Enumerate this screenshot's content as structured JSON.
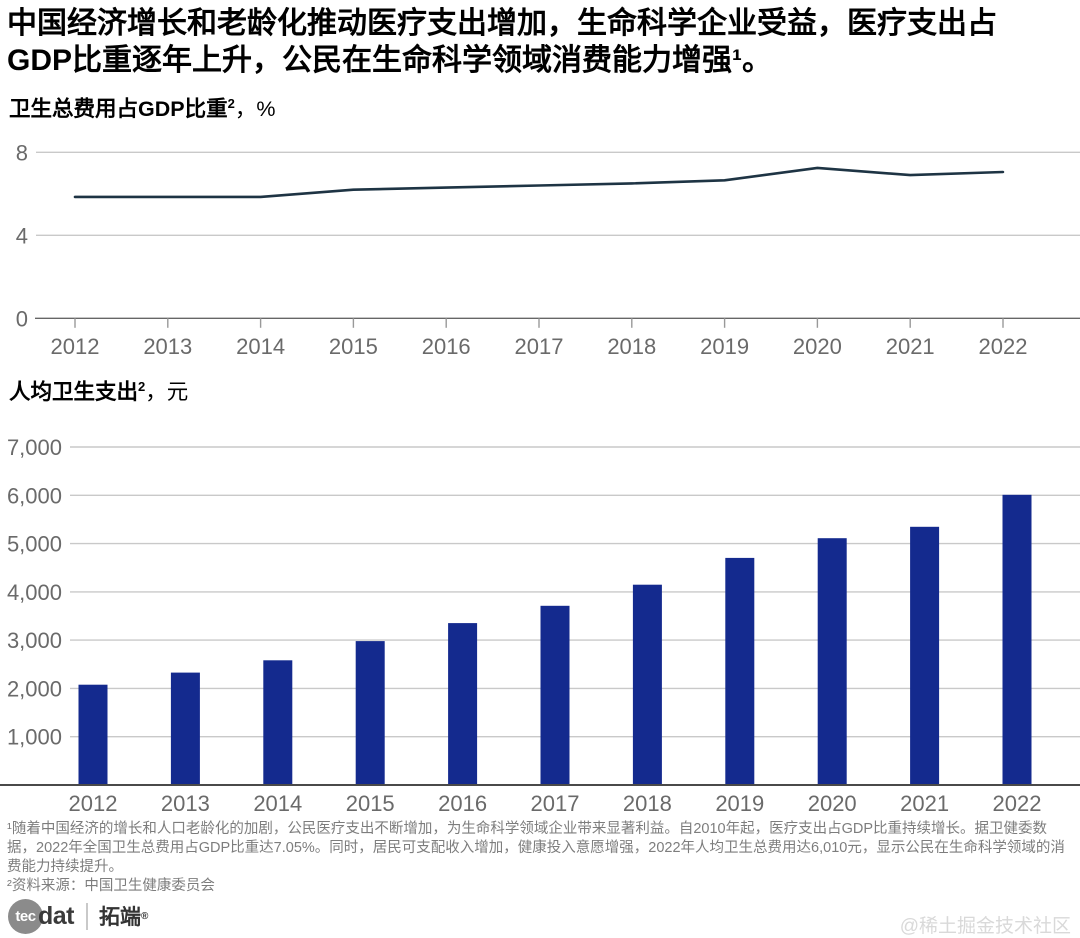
{
  "page": {
    "title_lines": [
      "中国经济增长和老龄化推动医疗支出增加，生命科学企业受益，医疗支出占",
      "GDP比重逐年上升，公民在生命科学领域消费能力增强¹。"
    ]
  },
  "chart_data": [
    {
      "type": "line",
      "title": "卫生总费用占GDP比重",
      "title_footnote_ref": "2",
      "unit": "，%",
      "x": [
        2012,
        2013,
        2014,
        2015,
        2016,
        2017,
        2018,
        2019,
        2020,
        2021,
        2022
      ],
      "values": [
        5.85,
        5.85,
        5.85,
        6.2,
        6.3,
        6.4,
        6.5,
        6.65,
        7.25,
        6.9,
        7.05
      ],
      "ylim": [
        0,
        8
      ],
      "yticks": [
        0,
        4,
        8
      ],
      "ytick_labels": [
        "0",
        "4",
        "8"
      ],
      "grid": "horizontal",
      "legend": "none",
      "line_color": "#1e3444"
    },
    {
      "type": "bar",
      "title": "人均卫生支出",
      "title_footnote_ref": "2",
      "unit": "，元",
      "categories": [
        2012,
        2013,
        2014,
        2015,
        2016,
        2017,
        2018,
        2019,
        2020,
        2021,
        2022
      ],
      "values": [
        2077,
        2327,
        2582,
        2981,
        3352,
        3712,
        4148,
        4703,
        5112,
        5348,
        6010
      ],
      "ylim": [
        0,
        7000
      ],
      "yticks": [
        1000,
        2000,
        3000,
        4000,
        5000,
        6000,
        7000
      ],
      "ytick_labels": [
        "1,000",
        "2,000",
        "3,000",
        "4,000",
        "5,000",
        "6,000",
        "7,000"
      ],
      "grid": "horizontal",
      "legend": "none",
      "bar_color": "#142a8e"
    }
  ],
  "colors": {
    "gridline": "#c9c9c9",
    "axis_line": "#666666",
    "bar_baseline": "#4a4a4a",
    "tick": "#999999",
    "tick_label": "#6a6a6a"
  },
  "footnotes": {
    "note1": "¹随着中国经济的增长和人口老龄化的加剧，公民医疗支出不断增加，为生命科学领域企业带来显著利益。自2010年起，医疗支出占GDP比重持续增长。据卫健委数据，2022年全国卫生总费用占GDP比重达7.05%。同时，居民可支配收入增加，健康投入意愿增强，2022年人均卫生总费用达6,010元，显示公民在生命科学领域的消费能力持续提升。",
    "note2": "²资料来源：中国卫生健康委员会"
  },
  "branding": {
    "logo_circle_text": "tec",
    "logo_text": "dat",
    "logo_cn": "拓端",
    "logo_reg": "®",
    "watermark": "@稀土掘金技术社区"
  }
}
